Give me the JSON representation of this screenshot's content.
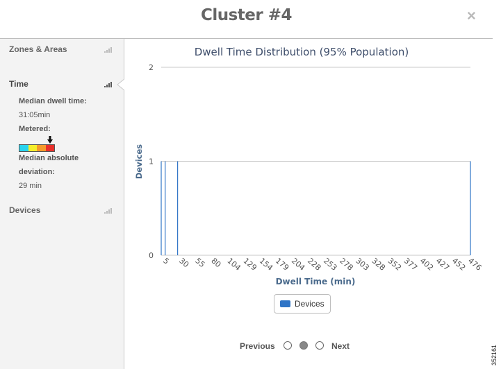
{
  "header": {
    "title": "Cluster #4",
    "close_symbol": "×"
  },
  "sidebar": {
    "items": [
      {
        "label": "Zones & Areas",
        "active": false,
        "icon": "signal-bars-icon"
      },
      {
        "label": "Time",
        "active": true,
        "icon": "signal-bars-icon"
      },
      {
        "label": "Devices",
        "active": false,
        "icon": "signal-bars-icon"
      }
    ],
    "time_details": {
      "median_dwell_label": "Median dwell time:",
      "median_dwell_value": "31:05min",
      "metered_label": "Metered:",
      "meter_colors": [
        "#29d3ee",
        "#f4ee2c",
        "#f59a2b",
        "#e8302b"
      ],
      "mad_label_line1": "Median absolute",
      "mad_label_line2": "deviation:",
      "mad_value": "29 min"
    }
  },
  "chart_data": {
    "type": "bar",
    "title": "Dwell Time Distribution (95% Population)",
    "xlabel": "Dwell Time (min)",
    "ylabel": "Devices",
    "x_ticks": [
      "5",
      "30",
      "55",
      "80",
      "104",
      "129",
      "154",
      "179",
      "204",
      "228",
      "253",
      "278",
      "303",
      "328",
      "352",
      "377",
      "402",
      "427",
      "452",
      "476"
    ],
    "y_ticks": [
      "0",
      "1",
      "2"
    ],
    "ylim": [
      0,
      2
    ],
    "xlim": [
      5,
      476
    ],
    "grid": true,
    "series": [
      {
        "name": "Devices",
        "color": "#2f74c6",
        "points": [
          [
            5,
            1
          ],
          [
            11,
            1
          ],
          [
            30,
            1
          ],
          [
            476,
            1
          ]
        ]
      }
    ]
  },
  "legend": {
    "label": "Devices"
  },
  "pagination": {
    "previous_label": "Previous",
    "next_label": "Next",
    "page_count": 3,
    "current_index": 1
  },
  "footer": {
    "figure_id": "352161"
  }
}
